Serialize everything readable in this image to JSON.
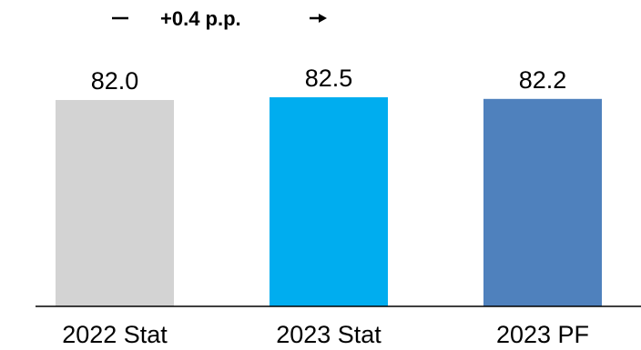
{
  "chart_data": {
    "type": "bar",
    "categories": [
      "2022 Stat",
      "2023 Stat",
      "2023 PF"
    ],
    "values": [
      82.0,
      82.5,
      82.2
    ],
    "value_labels": [
      "82.0",
      "82.5",
      "82.2"
    ],
    "colors": [
      "#d3d3d3",
      "#00adef",
      "#4f81bd"
    ],
    "annotation": "+0.4 p.p.",
    "grid": false,
    "legend": "none"
  }
}
